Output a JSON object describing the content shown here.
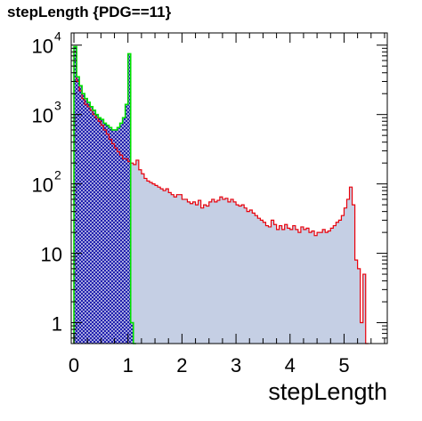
{
  "chart_data": {
    "type": "histogram",
    "title": "stepLength {PDG==11}",
    "xlabel": "stepLength",
    "ylabel": "",
    "xlim": [
      -0.05,
      5.8
    ],
    "ylim": [
      0.5,
      15000
    ],
    "yscale": "log",
    "x_ticks": [
      "0",
      "1",
      "2",
      "3",
      "4",
      "5"
    ],
    "y_ticks": [
      {
        "value": 1,
        "base": "1",
        "exp": ""
      },
      {
        "value": 10,
        "base": "10",
        "exp": ""
      },
      {
        "value": 100,
        "base": "10",
        "exp": "2"
      },
      {
        "value": 1000,
        "base": "10",
        "exp": "3"
      },
      {
        "value": 10000,
        "base": "10",
        "exp": "4"
      }
    ],
    "bin_width": 0.05,
    "series": [
      {
        "color": "#e8000b",
        "fill": "#c5cfe4",
        "values": [
          8000,
          3000,
          2200,
          1700,
          1400,
          1300,
          1150,
          1000,
          900,
          800,
          700,
          600,
          520,
          440,
          380,
          330,
          290,
          260,
          230,
          230,
          210,
          200,
          190,
          220,
          160,
          140,
          120,
          110,
          105,
          100,
          95,
          90,
          85,
          80,
          85,
          75,
          70,
          65,
          70,
          70,
          60,
          60,
          55,
          52,
          55,
          50,
          58,
          45,
          50,
          48,
          55,
          60,
          55,
          58,
          65,
          60,
          62,
          55,
          60,
          55,
          50,
          48,
          50,
          45,
          40,
          42,
          38,
          35,
          32,
          30,
          28,
          25,
          24,
          30,
          26,
          22,
          25,
          22,
          26,
          23,
          22,
          25,
          22,
          20,
          24,
          22,
          23,
          20,
          21,
          18,
          20,
          20,
          22,
          20,
          21,
          23,
          25,
          28,
          30,
          35,
          45,
          60,
          90,
          50,
          8,
          6,
          1,
          5,
          0
        ]
      },
      {
        "color": "#00e000",
        "fill": "#1010a8",
        "values": [
          9500,
          3500,
          2600,
          2000,
          1700,
          1500,
          1300,
          1150,
          1000,
          900,
          850,
          750,
          700,
          650,
          600,
          600,
          650,
          750,
          900,
          1400,
          7500,
          1,
          0
        ]
      }
    ]
  }
}
